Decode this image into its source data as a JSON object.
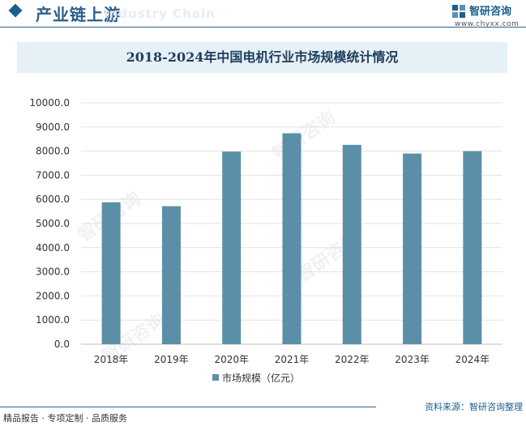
{
  "header": {
    "section_title": "产业链上游",
    "watermark_en": "Industry Chain",
    "brand_name": "智研咨询",
    "brand_url": "www.chyxx.com"
  },
  "colors": {
    "bar": "#5b8fa8",
    "accent": "#2b5f8a",
    "title_bg": "#e6f0f7"
  },
  "chart_data": {
    "type": "bar",
    "title": "2018-2024年中国电机行业市场规模统计情况",
    "categories": [
      "2018年",
      "2019年",
      "2020年",
      "2021年",
      "2022年",
      "2023年",
      "2024年"
    ],
    "series": [
      {
        "name": "市场规模（亿元）",
        "values": [
          5880,
          5720,
          7980,
          8740,
          8260,
          7900,
          8000
        ]
      }
    ],
    "ylim": [
      0,
      10000
    ],
    "yticks": [
      "0.0",
      "1000.0",
      "2000.0",
      "3000.0",
      "4000.0",
      "5000.0",
      "6000.0",
      "7000.0",
      "8000.0",
      "9000.0",
      "10000.0"
    ],
    "ytick_values": [
      0,
      1000,
      2000,
      3000,
      4000,
      5000,
      6000,
      7000,
      8000,
      9000,
      10000
    ],
    "grid": true,
    "legend_position": "bottom"
  },
  "footer": {
    "left": "精品报告 · 专项定制 · 品质服务",
    "right": "资料来源：智研咨询整理"
  }
}
